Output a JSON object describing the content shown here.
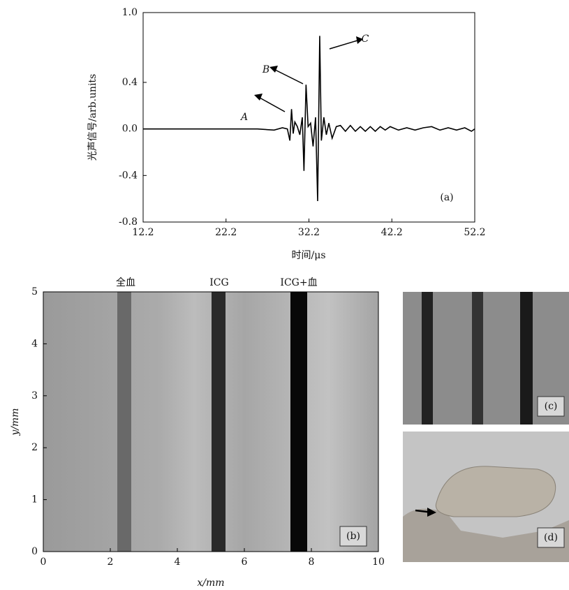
{
  "chart_data": [
    {
      "type": "line",
      "xlabel": "时间/μs",
      "ylabel": "光声信号/arb.units",
      "xlim": [
        12.2,
        52.2
      ],
      "xticks": [
        12.2,
        22.2,
        32.2,
        42.2,
        52.2
      ],
      "ylim": [
        -0.8,
        1.0
      ],
      "yticks": [
        {
          "value": 1.0,
          "label": "1.0"
        },
        0.4,
        {
          "value": 0,
          "label": "0.0"
        },
        -0.4,
        -0.8
      ],
      "annotations": [
        "A",
        "B",
        "C",
        "(a)"
      ],
      "series": [
        {
          "color": "#000000",
          "x": [
            12.2,
            20,
            26,
            28,
            29,
            29.6,
            29.9,
            30.1,
            30.3,
            30.5,
            30.8,
            31.1,
            31.4,
            31.6,
            31.85,
            32.1,
            32.4,
            32.7,
            33.0,
            33.25,
            33.5,
            33.7,
            34.0,
            34.3,
            34.6,
            35.0,
            35.5,
            36,
            36.6,
            37.2,
            37.8,
            38.4,
            39,
            39.6,
            40.2,
            40.8,
            41.4,
            42,
            43,
            44,
            45,
            46,
            47,
            48,
            49,
            50,
            51,
            51.8,
            52.2
          ],
          "values": [
            0,
            0,
            0,
            -0.01,
            0.01,
            0,
            -0.1,
            0.17,
            -0.04,
            0.06,
            0.02,
            -0.05,
            0.1,
            -0.36,
            0.38,
            0.02,
            0.05,
            -0.15,
            0.1,
            -0.62,
            0.8,
            -0.1,
            0.1,
            -0.05,
            0.05,
            -0.08,
            0.02,
            0.03,
            -0.02,
            0.03,
            -0.02,
            0.02,
            -0.02,
            0.02,
            -0.02,
            0.02,
            -0.01,
            0.02,
            -0.01,
            0.01,
            -0.01,
            0.01,
            0.02,
            -0.01,
            0.01,
            -0.01,
            0.01,
            -0.02,
            0
          ]
        }
      ]
    },
    {
      "type": "image",
      "xlabel": "x/mm",
      "ylabel": "y/mm",
      "xlim": [
        0,
        10
      ],
      "xticks": [
        0,
        2,
        4,
        6,
        8,
        10
      ],
      "ylim": [
        0,
        5
      ],
      "yticks": [
        0,
        1,
        2,
        3,
        4,
        5
      ],
      "annotations": [
        "全血",
        "ICG",
        "ICG+血",
        "(b)"
      ]
    }
  ],
  "panels": [
    "(c)",
    "(d)"
  ]
}
